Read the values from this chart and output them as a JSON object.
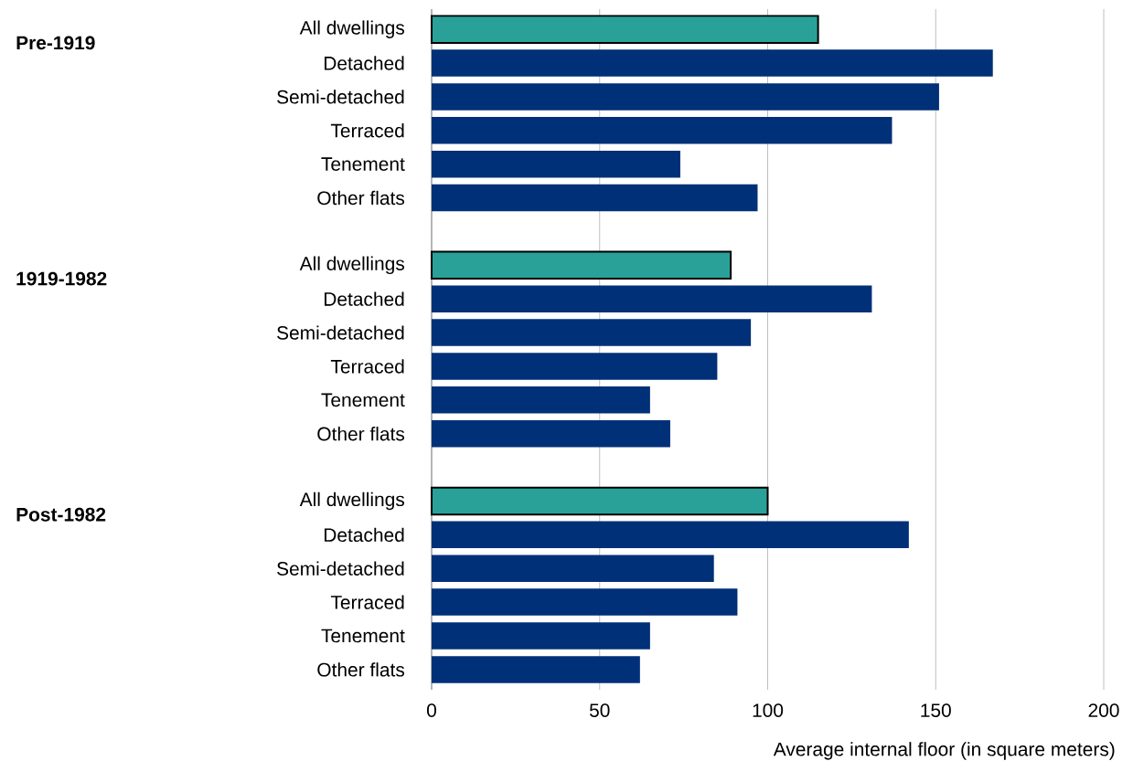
{
  "chart_data": {
    "type": "bar",
    "orientation": "horizontal",
    "xlabel": "Average internal floor (in square meters)",
    "categories": [
      "All dwellings",
      "Detached",
      "Semi-detached",
      "Terraced",
      "Tenement",
      "Other flats",
      null,
      "All dwellings",
      "Detached",
      "Semi-detached",
      "Terraced",
      "Tenement",
      "Other flats",
      null,
      "All dwellings",
      "Detached",
      "Semi-detached",
      "Terraced",
      "Tenement",
      "Other flats"
    ],
    "values": [
      115,
      167,
      151,
      137,
      74,
      97,
      null,
      89,
      131,
      95,
      85,
      65,
      71,
      null,
      100,
      142,
      84,
      91,
      65,
      62
    ],
    "color": "#003078",
    "colors": [
      "#2aa198",
      "#003078",
      "#003078",
      "#003078",
      "#003078",
      "#003078",
      "#003078",
      "#2aa198",
      "#003078",
      "#003078",
      "#003078",
      "#003078",
      "#003078",
      "#003078",
      "#2aa198",
      "#003078",
      "#003078",
      "#003078",
      "#003078",
      "#003078"
    ],
    "annotations": [
      "Pre-1919",
      "1919-1982",
      "Post-1982"
    ],
    "xlim": [
      0,
      200
    ],
    "xticks": [
      0,
      50,
      100,
      150,
      200
    ],
    "grid": "x"
  }
}
